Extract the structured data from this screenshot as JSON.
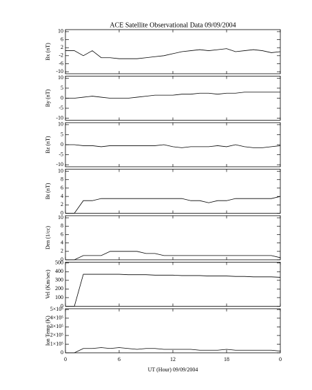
{
  "chart_data": [
    {
      "type": "line",
      "title": "ACE Satellite Observational Data   09/09/2004",
      "ylabel": "Bx (nT)",
      "color": "#000000",
      "x": [
        0,
        1,
        2,
        3,
        4,
        5,
        6,
        7,
        8,
        9,
        10,
        11,
        12,
        13,
        14,
        15,
        16,
        17,
        18,
        19,
        20,
        21,
        22,
        23,
        24
      ],
      "values": [
        0.5,
        0.5,
        -2,
        0.5,
        -3,
        -3,
        -3.5,
        -3.5,
        -3.5,
        -3,
        -2.5,
        -2,
        -1,
        0,
        0.5,
        1,
        0.5,
        1,
        1.5,
        0,
        0.5,
        1,
        0.5,
        -0.5,
        0
      ],
      "xlim": [
        0,
        24
      ],
      "ylim": [
        -11,
        11
      ],
      "yticks": [
        10,
        6,
        2,
        -2,
        -6,
        -10
      ]
    },
    {
      "type": "line",
      "ylabel": "By (nT)",
      "color": "#000000",
      "x": [
        0,
        1,
        2,
        3,
        4,
        5,
        6,
        7,
        8,
        9,
        10,
        11,
        12,
        13,
        14,
        15,
        16,
        17,
        18,
        19,
        20,
        21,
        22,
        23,
        24
      ],
      "values": [
        0,
        0,
        0.5,
        1,
        0.5,
        0,
        0,
        0,
        0.5,
        1,
        1.5,
        1.5,
        1.5,
        2,
        2,
        2.5,
        2.5,
        2,
        2.5,
        2.5,
        3,
        3,
        3,
        3,
        3
      ],
      "xlim": [
        0,
        24
      ],
      "ylim": [
        -11,
        11
      ],
      "yticks": [
        10,
        5,
        0,
        -5,
        -10
      ]
    },
    {
      "type": "line",
      "ylabel": "Bz (nT)",
      "color": "#000000",
      "x": [
        0,
        1,
        2,
        3,
        4,
        5,
        6,
        7,
        8,
        9,
        10,
        11,
        12,
        13,
        14,
        15,
        16,
        17,
        18,
        19,
        20,
        21,
        22,
        23,
        24
      ],
      "values": [
        0,
        0,
        -0.5,
        -0.5,
        -1,
        -0.5,
        -0.5,
        -0.5,
        -0.5,
        -0.5,
        -0.5,
        0,
        -1,
        -1.5,
        -1,
        -1,
        -1,
        -0.5,
        -1,
        0,
        -1,
        -1.5,
        -1.5,
        -1,
        -0.5
      ],
      "xlim": [
        0,
        24
      ],
      "ylim": [
        -11,
        11
      ],
      "yticks": [
        10,
        5,
        0,
        -5,
        -10
      ]
    },
    {
      "type": "line",
      "ylabel": "Bt (nT)",
      "color": "#000000",
      "x": [
        0,
        1,
        2,
        3,
        4,
        5,
        6,
        7,
        8,
        9,
        10,
        11,
        12,
        13,
        14,
        15,
        16,
        17,
        18,
        19,
        20,
        21,
        22,
        23,
        24
      ],
      "values": [
        0,
        0,
        3,
        3,
        3.5,
        3.5,
        3.5,
        3.5,
        3.5,
        3.5,
        3.5,
        3.5,
        3.5,
        3.5,
        3,
        3,
        2.5,
        3,
        3,
        3.5,
        3.5,
        3.5,
        3.5,
        3.5,
        4
      ],
      "xlim": [
        0,
        24
      ],
      "ylim": [
        0,
        10.5
      ],
      "yticks": [
        10,
        8,
        6,
        4,
        2,
        0
      ]
    },
    {
      "type": "line",
      "ylabel": "Den (1/cc)",
      "color": "#000000",
      "x": [
        0,
        1,
        2,
        3,
        4,
        5,
        6,
        7,
        8,
        9,
        10,
        11,
        12,
        13,
        14,
        15,
        16,
        17,
        18,
        19,
        20,
        21,
        22,
        23,
        24
      ],
      "values": [
        0,
        0,
        1,
        1,
        1,
        2,
        2,
        2,
        2,
        1.5,
        1.5,
        1,
        1,
        1,
        1,
        1,
        1,
        1,
        1,
        1,
        1,
        1,
        1,
        1,
        0.5
      ],
      "xlim": [
        0,
        24
      ],
      "ylim": [
        0,
        10.5
      ],
      "yticks": [
        10,
        8,
        6,
        4,
        2,
        0
      ]
    },
    {
      "type": "line",
      "ylabel": "Vel (Km/sec)",
      "color": "#000000",
      "x": [
        0,
        1,
        2,
        3,
        4,
        5,
        6,
        7,
        8,
        9,
        10,
        11,
        12,
        13,
        14,
        15,
        16,
        17,
        18,
        19,
        20,
        21,
        22,
        23,
        24
      ],
      "values": [
        0,
        0,
        370,
        370,
        370,
        370,
        370,
        365,
        365,
        365,
        360,
        360,
        360,
        355,
        355,
        355,
        350,
        350,
        350,
        345,
        345,
        340,
        340,
        340,
        335
      ],
      "xlim": [
        0,
        24
      ],
      "ylim": [
        0,
        510
      ],
      "yticks": [
        500,
        400,
        300,
        200,
        100,
        0
      ]
    },
    {
      "type": "line",
      "ylabel": "Ion Temp (K)",
      "xlabel": "UT (Hour)  09/09/2004",
      "color": "#000000",
      "x": [
        0,
        1,
        2,
        3,
        4,
        5,
        6,
        7,
        8,
        9,
        10,
        11,
        12,
        13,
        14,
        15,
        16,
        17,
        18,
        19,
        20,
        21,
        22,
        23,
        24
      ],
      "values": [
        0,
        0,
        50000,
        50000,
        60000,
        50000,
        60000,
        50000,
        40000,
        50000,
        50000,
        40000,
        40000,
        40000,
        40000,
        30000,
        30000,
        30000,
        40000,
        30000,
        30000,
        30000,
        30000,
        30000,
        20000
      ],
      "xlim": [
        0,
        24
      ],
      "ylim": [
        0,
        510000
      ],
      "yticks": [
        {
          "value": 500000,
          "label": "5×10⁵"
        },
        {
          "value": 400000,
          "label": "4×10⁵"
        },
        {
          "value": 300000,
          "label": "3×10⁵"
        },
        {
          "value": 200000,
          "label": "2×10⁵"
        },
        {
          "value": 100000,
          "label": "1×10⁵"
        },
        0
      ],
      "xticks": [
        0,
        6,
        12,
        18,
        {
          "value": 24,
          "label": "0"
        }
      ]
    }
  ]
}
